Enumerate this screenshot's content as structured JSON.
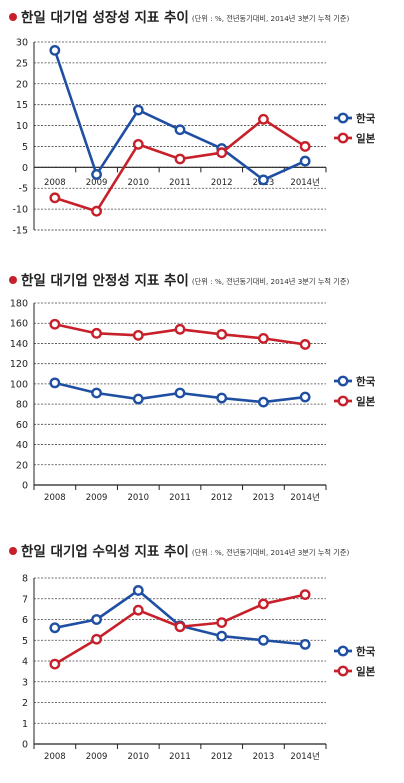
{
  "chart_data": [
    {
      "type": "line",
      "title": "한일 대기업 성장성 지표 추이",
      "subtitle": "(단위 : %, 전년동기대비, 2014년 3분기 누적 기준)",
      "categories": [
        "2008",
        "2009",
        "2010",
        "2011",
        "2012",
        "2013",
        "2014년"
      ],
      "ylim": [
        -15,
        30
      ],
      "yticks": [
        -15,
        -10,
        -5,
        0,
        5,
        10,
        15,
        20,
        25,
        30
      ],
      "grid": true,
      "legend_position": "right",
      "series": [
        {
          "name": "한국",
          "color": "#1f4fa3",
          "values": [
            28.0,
            -1.7,
            13.7,
            9.0,
            4.5,
            -3.0,
            1.5
          ]
        },
        {
          "name": "일본",
          "color": "#c8202b",
          "values": [
            -7.3,
            -10.5,
            5.5,
            2.0,
            3.5,
            11.5,
            5.0
          ]
        }
      ]
    },
    {
      "type": "line",
      "title": "한일 대기업 안정성 지표 추이",
      "subtitle": "(단위 : %, 전년동기대비, 2014년 3분기 누적 기준)",
      "categories": [
        "2008",
        "2009",
        "2010",
        "2011",
        "2012",
        "2013",
        "2014년"
      ],
      "ylim": [
        0,
        180
      ],
      "yticks": [
        0,
        20,
        40,
        60,
        80,
        100,
        120,
        140,
        160,
        180
      ],
      "grid": true,
      "legend_position": "right",
      "series": [
        {
          "name": "한국",
          "color": "#1f4fa3",
          "values": [
            101,
            91,
            85,
            91,
            86,
            82,
            87
          ]
        },
        {
          "name": "일본",
          "color": "#c8202b",
          "values": [
            159,
            150,
            148,
            154,
            149,
            145,
            139
          ]
        }
      ]
    },
    {
      "type": "line",
      "title": "한일 대기업 수익성 지표 추이",
      "subtitle": "(단위 : %, 전년동기대비, 2014년 3분기 누적 기준)",
      "categories": [
        "2008",
        "2009",
        "2010",
        "2011",
        "2012",
        "2013",
        "2014년"
      ],
      "ylim": [
        0,
        8
      ],
      "yticks": [
        0,
        1,
        2,
        3,
        4,
        5,
        6,
        7,
        8
      ],
      "grid": true,
      "legend_position": "right",
      "series": [
        {
          "name": "한국",
          "color": "#1f4fa3",
          "values": [
            5.6,
            6.0,
            7.4,
            5.7,
            5.2,
            5.0,
            4.8
          ]
        },
        {
          "name": "일본",
          "color": "#c8202b",
          "values": [
            3.85,
            5.05,
            6.45,
            5.65,
            5.85,
            6.75,
            7.2
          ]
        }
      ]
    }
  ]
}
